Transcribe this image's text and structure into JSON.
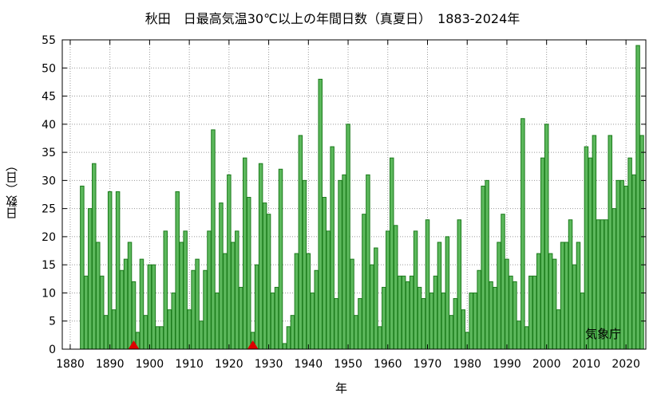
{
  "chart_data": {
    "type": "bar",
    "title": "秋田　日最高気温30℃以上の年間日数（真夏日）　1883-2024年",
    "xlabel": "年",
    "ylabel": "日数（日）",
    "credit": "気象庁",
    "ylim": [
      0,
      55
    ],
    "xlim": [
      1878,
      2025
    ],
    "yticks": [
      0,
      5,
      10,
      15,
      20,
      25,
      30,
      35,
      40,
      45,
      50,
      55
    ],
    "xticks": [
      1880,
      1890,
      1900,
      1910,
      1920,
      1930,
      1940,
      1950,
      1960,
      1970,
      1980,
      1990,
      2000,
      2010,
      2020
    ],
    "grid": true,
    "bar_color": "#5cb85c",
    "bar_edge_color": "#1a7a1a",
    "marker_color": "#dd0000",
    "markers_x": [
      1896,
      1926
    ],
    "years": [
      1883,
      1884,
      1885,
      1886,
      1887,
      1888,
      1889,
      1890,
      1891,
      1892,
      1893,
      1894,
      1895,
      1896,
      1897,
      1898,
      1899,
      1900,
      1901,
      1902,
      1903,
      1904,
      1905,
      1906,
      1907,
      1908,
      1909,
      1910,
      1911,
      1912,
      1913,
      1914,
      1915,
      1916,
      1917,
      1918,
      1919,
      1920,
      1921,
      1922,
      1923,
      1924,
      1925,
      1926,
      1927,
      1928,
      1929,
      1930,
      1931,
      1932,
      1933,
      1934,
      1935,
      1936,
      1937,
      1938,
      1939,
      1940,
      1941,
      1942,
      1943,
      1944,
      1945,
      1946,
      1947,
      1948,
      1949,
      1950,
      1951,
      1952,
      1953,
      1954,
      1955,
      1956,
      1957,
      1958,
      1959,
      1960,
      1961,
      1962,
      1963,
      1964,
      1965,
      1966,
      1967,
      1968,
      1969,
      1970,
      1971,
      1972,
      1973,
      1974,
      1975,
      1976,
      1977,
      1978,
      1979,
      1980,
      1981,
      1982,
      1983,
      1984,
      1985,
      1986,
      1987,
      1988,
      1989,
      1990,
      1991,
      1992,
      1993,
      1994,
      1995,
      1996,
      1997,
      1998,
      1999,
      2000,
      2001,
      2002,
      2003,
      2004,
      2005,
      2006,
      2007,
      2008,
      2009,
      2010,
      2011,
      2012,
      2013,
      2014,
      2015,
      2016,
      2017,
      2018,
      2019,
      2020,
      2021,
      2022,
      2023,
      2024
    ],
    "values": [
      29,
      13,
      25,
      33,
      19,
      13,
      6,
      28,
      7,
      28,
      14,
      16,
      19,
      12,
      3,
      16,
      6,
      15,
      15,
      4,
      4,
      21,
      7,
      10,
      28,
      19,
      21,
      7,
      14,
      16,
      5,
      14,
      21,
      39,
      10,
      26,
      17,
      31,
      19,
      21,
      11,
      34,
      27,
      3,
      15,
      33,
      26,
      24,
      10,
      11,
      32,
      1,
      4,
      6,
      17,
      38,
      30,
      17,
      10,
      14,
      48,
      27,
      21,
      36,
      9,
      30,
      31,
      40,
      16,
      6,
      9,
      24,
      31,
      15,
      18,
      4,
      11,
      21,
      34,
      22,
      13,
      13,
      12,
      13,
      21,
      11,
      9,
      23,
      10,
      13,
      19,
      10,
      20,
      6,
      9,
      23,
      7,
      3,
      10,
      10,
      14,
      29,
      30,
      12,
      11,
      19,
      24,
      16,
      13,
      12,
      5,
      41,
      4,
      13,
      13,
      17,
      34,
      40,
      17,
      16,
      7,
      19,
      19,
      23,
      15,
      19,
      10,
      36,
      34,
      38,
      23,
      23,
      23,
      38,
      25,
      30,
      30,
      29,
      34,
      31,
      54,
      38
    ]
  }
}
